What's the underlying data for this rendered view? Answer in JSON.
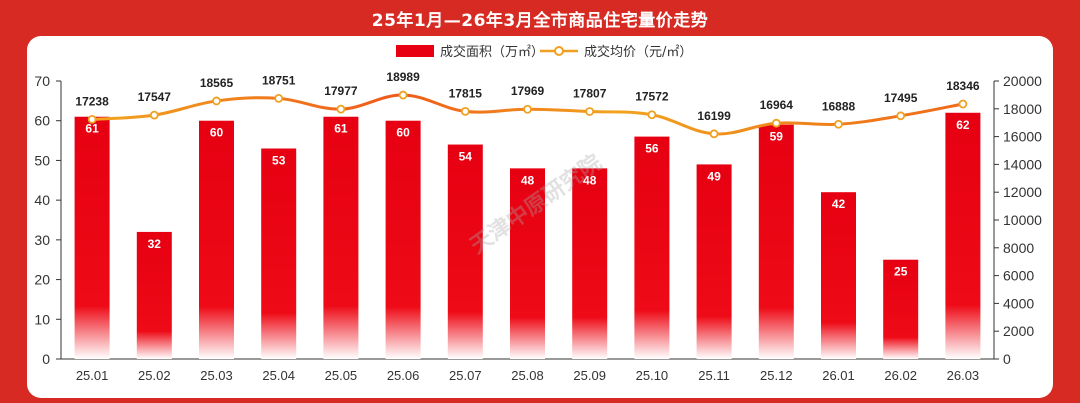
{
  "title": "25年1月—26年3月全市商品住宅量价走势",
  "watermark": "天津中原研究院",
  "chart_data": {
    "type": "bar+line",
    "categories": [
      "25.01",
      "25.02",
      "25.03",
      "25.04",
      "25.05",
      "25.06",
      "25.07",
      "25.08",
      "25.09",
      "25.10",
      "25.11",
      "25.12",
      "26.01",
      "26.02",
      "26.03"
    ],
    "series": [
      {
        "name": "成交面积（万㎡）",
        "type": "bar",
        "axis": "left",
        "color": "#e60012",
        "values": [
          61,
          32,
          60,
          53,
          61,
          60,
          54,
          48,
          48,
          56,
          49,
          59,
          42,
          25,
          62
        ]
      },
      {
        "name": "成交均价（元/㎡）",
        "type": "line",
        "axis": "right",
        "color": "#f0a020",
        "values": [
          17238,
          17547,
          18565,
          18751,
          17977,
          18989,
          17815,
          17969,
          17807,
          17572,
          16199,
          16964,
          16888,
          17495,
          18346
        ]
      }
    ],
    "y_left": {
      "min": 0,
      "max": 70,
      "ticks": [
        0,
        10,
        20,
        30,
        40,
        50,
        60,
        70
      ]
    },
    "y_right": {
      "min": 0,
      "max": 20000,
      "ticks": [
        0,
        2000,
        4000,
        6000,
        8000,
        10000,
        12000,
        14000,
        16000,
        18000,
        20000
      ]
    },
    "legend_position": "top-center"
  }
}
